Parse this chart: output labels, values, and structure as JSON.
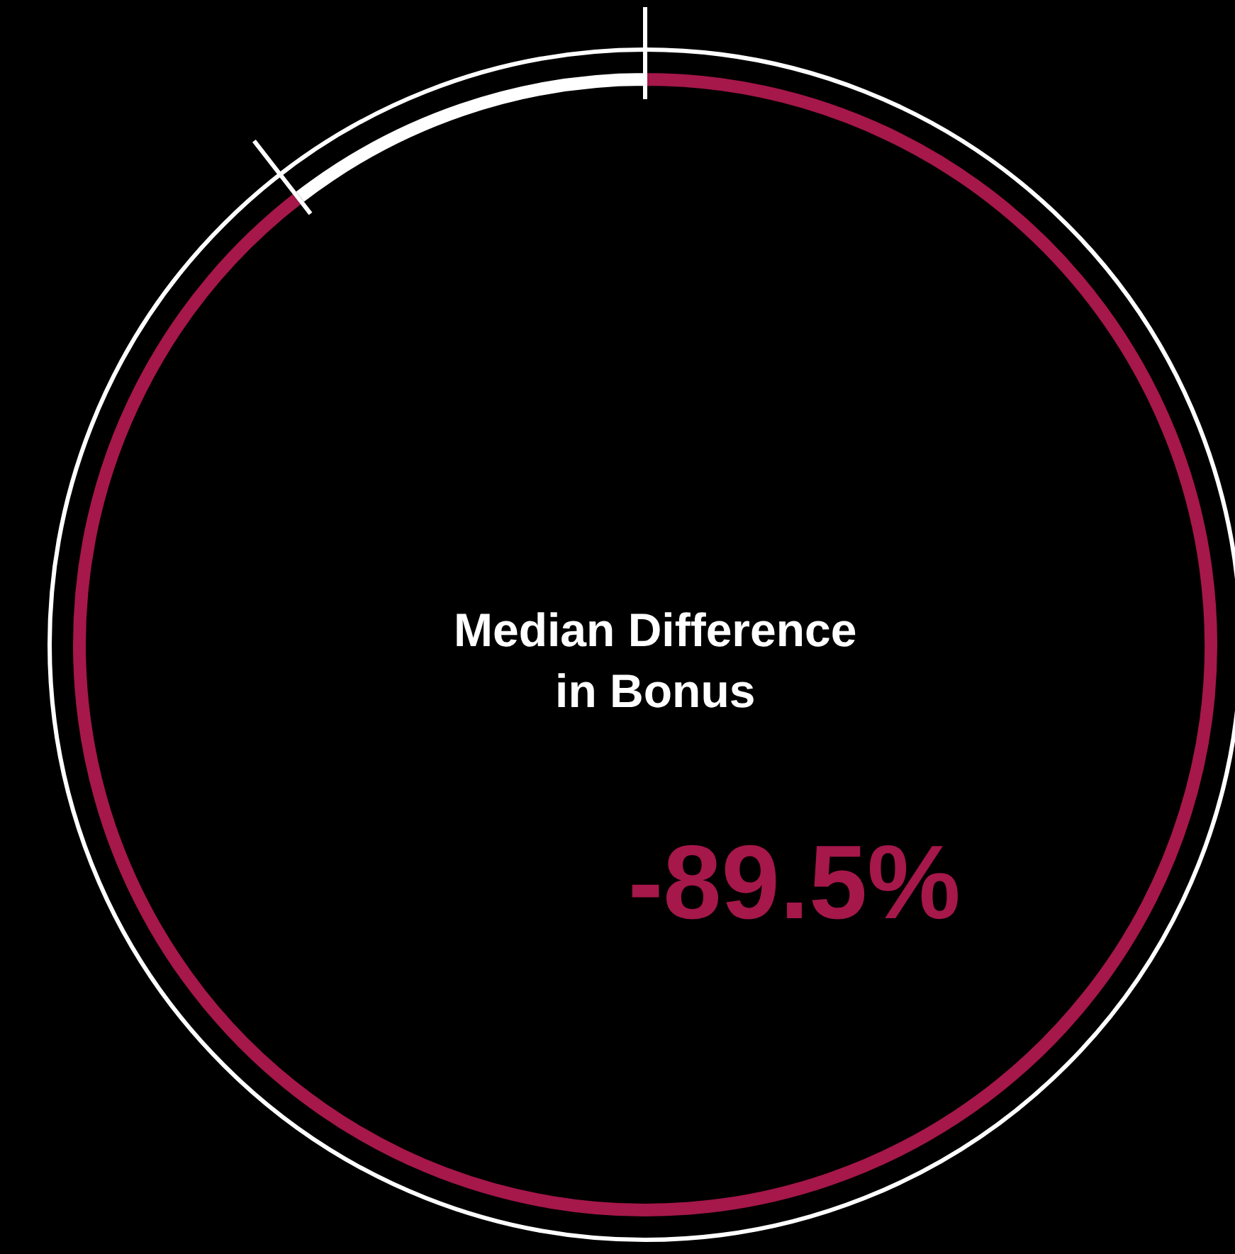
{
  "chart_data": {
    "type": "donut",
    "title": "Median Difference\nin Bonus",
    "categories": [
      null,
      null
    ],
    "values": [
      89.5,
      10.5
    ],
    "colors": [
      "#a6174a",
      "#ffffff"
    ],
    "annotations": [
      "-89.5%"
    ],
    "legend": false
  }
}
